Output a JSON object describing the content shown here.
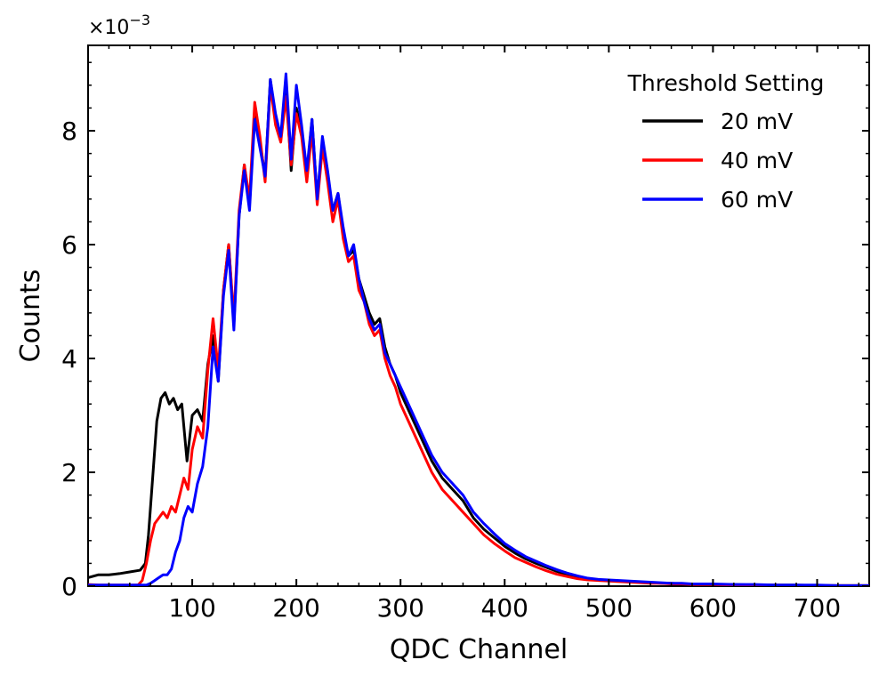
{
  "chart_data": {
    "type": "line",
    "title": "",
    "xlabel": "QDC Channel",
    "ylabel": "Counts",
    "y_multiplier": "×10",
    "y_exponent": "−3",
    "xlim": [
      0,
      750
    ],
    "ylim": [
      0,
      0.0095
    ],
    "xticks": [
      100,
      200,
      300,
      400,
      500,
      600,
      700
    ],
    "xtick_labels": [
      "100",
      "200",
      "300",
      "400",
      "500",
      "600",
      "700"
    ],
    "yticks": [
      0,
      0.002,
      0.004,
      0.006,
      0.008
    ],
    "ytick_labels": [
      "0",
      "2",
      "4",
      "6",
      "8"
    ],
    "grid": false,
    "legend": {
      "title": "Threshold Setting",
      "placement": "top-right"
    },
    "series": [
      {
        "name": "20 mV",
        "color": "#000000",
        "x": [
          0,
          10,
          20,
          30,
          40,
          50,
          55,
          58,
          62,
          66,
          70,
          74,
          78,
          82,
          86,
          90,
          95,
          100,
          105,
          110,
          115,
          120,
          125,
          130,
          135,
          140,
          145,
          150,
          155,
          160,
          165,
          170,
          175,
          180,
          185,
          190,
          195,
          200,
          205,
          210,
          215,
          220,
          225,
          230,
          235,
          240,
          245,
          250,
          255,
          260,
          265,
          270,
          275,
          280,
          285,
          290,
          295,
          300,
          310,
          320,
          330,
          340,
          350,
          360,
          370,
          380,
          390,
          400,
          410,
          420,
          430,
          440,
          450,
          460,
          470,
          480,
          490,
          500,
          510,
          520,
          530,
          540,
          550,
          560,
          570,
          580,
          600,
          620,
          640,
          660,
          680,
          700,
          720,
          750
        ],
        "y": [
          0.00015,
          0.0002,
          0.0002,
          0.00022,
          0.00025,
          0.00028,
          0.0004,
          0.0009,
          0.0019,
          0.0029,
          0.0033,
          0.0034,
          0.0032,
          0.0033,
          0.0031,
          0.0032,
          0.0022,
          0.003,
          0.0031,
          0.0029,
          0.0039,
          0.0044,
          0.0036,
          0.0052,
          0.006,
          0.0046,
          0.0065,
          0.0074,
          0.0067,
          0.0083,
          0.0078,
          0.0072,
          0.0089,
          0.0082,
          0.0079,
          0.0088,
          0.0073,
          0.0084,
          0.008,
          0.0072,
          0.0082,
          0.0068,
          0.0078,
          0.0072,
          0.0066,
          0.0069,
          0.0062,
          0.0058,
          0.0059,
          0.0054,
          0.0051,
          0.0048,
          0.0046,
          0.0047,
          0.0042,
          0.0039,
          0.0037,
          0.0034,
          0.003,
          0.0026,
          0.0022,
          0.0019,
          0.0017,
          0.0015,
          0.0012,
          0.001,
          0.00085,
          0.0007,
          0.00058,
          0.00048,
          0.0004,
          0.00033,
          0.00026,
          0.0002,
          0.00016,
          0.00013,
          0.00011,
          0.0001,
          9e-05,
          8e-05,
          7e-05,
          6e-05,
          5e-05,
          5e-05,
          4e-05,
          4e-05,
          3e-05,
          3e-05,
          2e-05,
          2e-05,
          2e-05,
          1e-05,
          1e-05,
          1e-05
        ]
      },
      {
        "name": "40 mV",
        "color": "#ff0000",
        "x": [
          0,
          10,
          20,
          30,
          40,
          48,
          52,
          56,
          60,
          64,
          68,
          72,
          76,
          80,
          84,
          88,
          92,
          96,
          100,
          105,
          110,
          115,
          120,
          125,
          130,
          135,
          140,
          145,
          150,
          155,
          160,
          165,
          170,
          175,
          180,
          185,
          190,
          195,
          200,
          205,
          210,
          215,
          220,
          225,
          230,
          235,
          240,
          245,
          250,
          255,
          260,
          265,
          270,
          275,
          280,
          285,
          290,
          295,
          300,
          310,
          320,
          330,
          340,
          350,
          360,
          370,
          380,
          390,
          400,
          410,
          420,
          430,
          440,
          450,
          460,
          470,
          480,
          490,
          500,
          510,
          520,
          530,
          540,
          550,
          560,
          570,
          580,
          600,
          620,
          640,
          660,
          680,
          700,
          720,
          750
        ],
        "y": [
          3e-05,
          2e-05,
          2e-05,
          2e-05,
          2e-05,
          2e-05,
          0.0001,
          0.0004,
          0.0008,
          0.0011,
          0.0012,
          0.0013,
          0.0012,
          0.0014,
          0.0013,
          0.0016,
          0.0019,
          0.0017,
          0.0024,
          0.0028,
          0.0026,
          0.0038,
          0.0047,
          0.0038,
          0.0052,
          0.006,
          0.0047,
          0.0066,
          0.0074,
          0.0068,
          0.0085,
          0.0079,
          0.0071,
          0.0088,
          0.0081,
          0.0078,
          0.0086,
          0.0074,
          0.0083,
          0.0079,
          0.0071,
          0.008,
          0.0067,
          0.0077,
          0.0071,
          0.0064,
          0.0068,
          0.0061,
          0.0057,
          0.0058,
          0.0052,
          0.005,
          0.0046,
          0.0044,
          0.0045,
          0.004,
          0.0037,
          0.0035,
          0.0032,
          0.0028,
          0.0024,
          0.002,
          0.0017,
          0.0015,
          0.0013,
          0.0011,
          0.0009,
          0.00075,
          0.00062,
          0.0005,
          0.00042,
          0.00034,
          0.00027,
          0.00021,
          0.00017,
          0.00013,
          0.00011,
          0.0001,
          9e-05,
          8e-05,
          7e-05,
          6e-05,
          5e-05,
          5e-05,
          4e-05,
          4e-05,
          3e-05,
          3e-05,
          2e-05,
          2e-05,
          2e-05,
          1e-05,
          1e-05,
          1e-05,
          1e-05
        ]
      },
      {
        "name": "60 mV",
        "color": "#0000ff",
        "x": [
          0,
          10,
          20,
          30,
          40,
          50,
          56,
          60,
          64,
          68,
          72,
          76,
          80,
          84,
          88,
          92,
          96,
          100,
          105,
          110,
          115,
          120,
          125,
          130,
          135,
          140,
          145,
          150,
          155,
          160,
          165,
          170,
          175,
          180,
          185,
          190,
          195,
          200,
          205,
          210,
          215,
          220,
          225,
          230,
          235,
          240,
          245,
          250,
          255,
          260,
          265,
          270,
          275,
          280,
          285,
          290,
          295,
          300,
          310,
          320,
          330,
          340,
          350,
          360,
          370,
          380,
          390,
          400,
          410,
          420,
          430,
          440,
          450,
          460,
          470,
          480,
          490,
          500,
          510,
          520,
          530,
          540,
          550,
          560,
          570,
          580,
          600,
          620,
          640,
          660,
          680,
          700,
          720,
          750
        ],
        "y": [
          2e-05,
          2e-05,
          2e-05,
          2e-05,
          2e-05,
          2e-05,
          2e-05,
          5e-05,
          0.0001,
          0.00015,
          0.0002,
          0.0002,
          0.0003,
          0.0006,
          0.0008,
          0.0012,
          0.0014,
          0.0013,
          0.0018,
          0.0021,
          0.0028,
          0.0042,
          0.0036,
          0.0051,
          0.0059,
          0.0045,
          0.0065,
          0.0073,
          0.0066,
          0.0082,
          0.0077,
          0.0072,
          0.0089,
          0.0083,
          0.0079,
          0.009,
          0.0075,
          0.0088,
          0.0081,
          0.0073,
          0.0082,
          0.0068,
          0.0079,
          0.0073,
          0.0066,
          0.0069,
          0.0063,
          0.0058,
          0.006,
          0.0054,
          0.005,
          0.0047,
          0.0045,
          0.0046,
          0.0041,
          0.0039,
          0.0037,
          0.0035,
          0.0031,
          0.0027,
          0.0023,
          0.002,
          0.0018,
          0.0016,
          0.0013,
          0.0011,
          0.00092,
          0.00075,
          0.00063,
          0.00052,
          0.00044,
          0.00036,
          0.00029,
          0.00023,
          0.00018,
          0.00014,
          0.00012,
          0.00011,
          0.0001,
          9e-05,
          8e-05,
          7e-05,
          6e-05,
          5e-05,
          5e-05,
          4e-05,
          4e-05,
          3e-05,
          3e-05,
          2e-05,
          2e-05,
          2e-05,
          1e-05,
          1e-05
        ]
      }
    ]
  }
}
